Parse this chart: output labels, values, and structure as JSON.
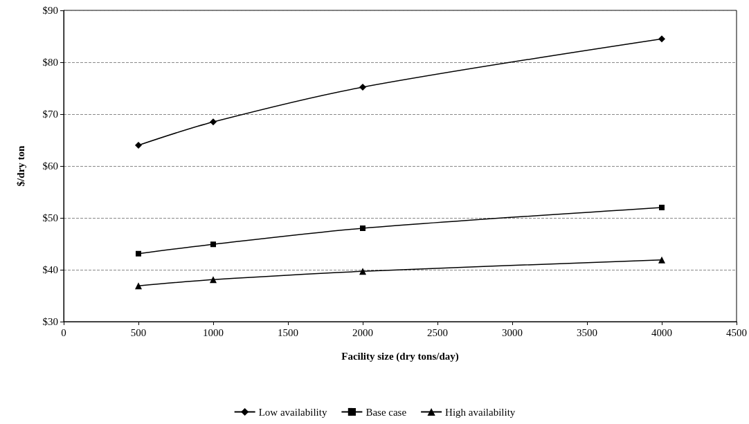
{
  "chart_data": {
    "type": "line",
    "xlabel": "Facility size (dry tons/day)",
    "ylabel": "$/dry ton",
    "x": [
      500,
      1000,
      2000,
      4000
    ],
    "series": [
      {
        "name": "Low availability",
        "color": "#000000",
        "marker": "diamond",
        "values": [
          64,
          68.5,
          75.2,
          84.5
        ]
      },
      {
        "name": "Base case",
        "color": "#000000",
        "marker": "square",
        "values": [
          43.1,
          44.9,
          48,
          52
        ]
      },
      {
        "name": "High availability",
        "color": "#000000",
        "marker": "triangle",
        "values": [
          36.9,
          38.1,
          39.7,
          41.9
        ]
      }
    ],
    "xlim": [
      0,
      4500
    ],
    "xticks": [
      0,
      500,
      1000,
      1500,
      2000,
      2500,
      3000,
      3500,
      4000,
      4500
    ],
    "ylim": [
      30,
      90
    ],
    "yticks": [
      {
        "value": 30,
        "label": "$30"
      },
      {
        "value": 40,
        "label": "$40"
      },
      {
        "value": 50,
        "label": "$50"
      },
      {
        "value": 60,
        "label": "$60"
      },
      {
        "value": 70,
        "label": "$70"
      },
      {
        "value": 80,
        "label": "$80"
      },
      {
        "value": 90,
        "label": "$90"
      }
    ],
    "grid": "y",
    "legend": "bottom",
    "line_style": "solid"
  }
}
